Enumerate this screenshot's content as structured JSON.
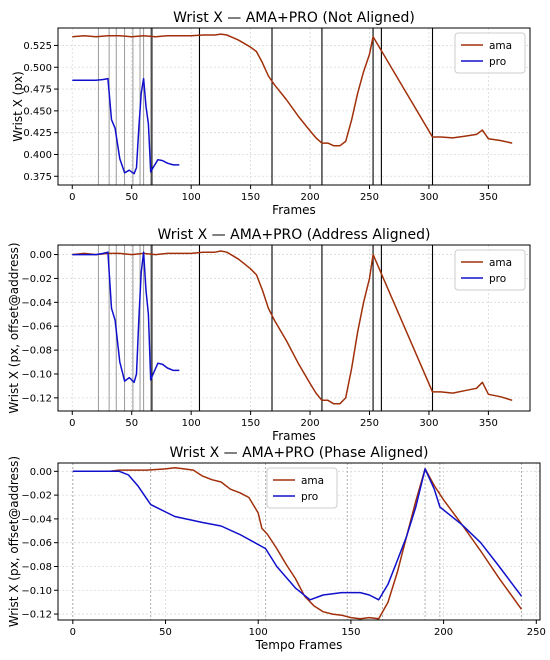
{
  "chart_data": [
    {
      "type": "line",
      "title": "Wrist X — AMA+PRO (Not Aligned)",
      "xlabel": "Frames",
      "ylabel": "Wrist X (px)",
      "xlim": [
        -12,
        385
      ],
      "ylim": [
        0.365,
        0.545
      ],
      "xticks": [
        0,
        50,
        100,
        150,
        200,
        250,
        300,
        350
      ],
      "yticks": [
        0.375,
        0.4,
        0.425,
        0.45,
        0.475,
        0.5,
        0.525
      ],
      "ytick_labels": [
        "0.375",
        "0.400",
        "0.425",
        "0.450",
        "0.475",
        "0.500",
        "0.525"
      ],
      "grid": true,
      "legend": "top-right",
      "pro_phase_lines": [
        22,
        31,
        37,
        44,
        51,
        57,
        60,
        66
      ],
      "ama_phase_lines": [
        67,
        107,
        168,
        210,
        253,
        260,
        303
      ],
      "series": [
        {
          "name": "ama",
          "color": "#a0300a",
          "x": [
            0,
            10,
            20,
            30,
            40,
            50,
            60,
            70,
            80,
            90,
            100,
            110,
            115,
            120,
            125,
            130,
            135,
            140,
            145,
            150,
            155,
            160,
            165,
            170,
            180,
            190,
            200,
            205,
            210,
            215,
            220,
            225,
            230,
            235,
            240,
            245,
            250,
            253,
            303,
            310,
            320,
            330,
            340,
            345,
            350,
            360,
            370
          ],
          "y": [
            0.535,
            0.536,
            0.535,
            0.536,
            0.536,
            0.535,
            0.536,
            0.535,
            0.536,
            0.536,
            0.536,
            0.537,
            0.537,
            0.537,
            0.538,
            0.537,
            0.534,
            0.531,
            0.527,
            0.523,
            0.518,
            0.505,
            0.49,
            0.48,
            0.463,
            0.444,
            0.427,
            0.419,
            0.413,
            0.413,
            0.41,
            0.41,
            0.415,
            0.44,
            0.47,
            0.495,
            0.515,
            0.535,
            0.42,
            0.42,
            0.419,
            0.421,
            0.423,
            0.428,
            0.418,
            0.416,
            0.413
          ]
        },
        {
          "name": "pro",
          "color": "#1010cc",
          "x": [
            0,
            10,
            20,
            26,
            30,
            33,
            36,
            40,
            44,
            48,
            52,
            54,
            56,
            58,
            60,
            62,
            64,
            66,
            68,
            72,
            76,
            80,
            85,
            88,
            90
          ],
          "y": [
            0.485,
            0.485,
            0.485,
            0.486,
            0.487,
            0.44,
            0.43,
            0.395,
            0.379,
            0.382,
            0.378,
            0.385,
            0.43,
            0.47,
            0.487,
            0.455,
            0.435,
            0.38,
            0.385,
            0.394,
            0.393,
            0.39,
            0.388,
            0.388,
            0.388
          ]
        }
      ]
    },
    {
      "type": "line",
      "title": "Wrist X — AMA+PRO (Address Aligned)",
      "xlabel": "Frames",
      "ylabel": "Wrist X (px, offset@address)",
      "xlim": [
        -12,
        385
      ],
      "ylim": [
        -0.131,
        0.008
      ],
      "xticks": [
        0,
        50,
        100,
        150,
        200,
        250,
        300,
        350
      ],
      "yticks": [
        -0.12,
        -0.1,
        -0.08,
        -0.06,
        -0.04,
        -0.02,
        0.0
      ],
      "ytick_labels": [
        "−0.12",
        "−0.10",
        "−0.08",
        "−0.06",
        "−0.04",
        "−0.02",
        "0.00"
      ],
      "grid": true,
      "legend": "top-right",
      "pro_phase_lines": [
        22,
        31,
        37,
        44,
        51,
        57,
        60,
        66
      ],
      "ama_phase_lines": [
        67,
        107,
        168,
        210,
        253,
        260,
        303
      ],
      "series": [
        {
          "name": "ama",
          "color": "#a0300a",
          "x": [
            0,
            10,
            20,
            30,
            40,
            50,
            60,
            70,
            80,
            90,
            100,
            110,
            115,
            120,
            125,
            130,
            135,
            140,
            145,
            150,
            155,
            160,
            165,
            170,
            180,
            190,
            200,
            205,
            210,
            215,
            220,
            225,
            230,
            235,
            240,
            245,
            250,
            253,
            303,
            310,
            320,
            330,
            340,
            345,
            350,
            360,
            370
          ],
          "y": [
            0.0,
            0.001,
            0.0,
            0.001,
            0.001,
            0.0,
            0.001,
            0.0,
            0.001,
            0.001,
            0.001,
            0.002,
            0.002,
            0.002,
            0.003,
            0.002,
            -0.001,
            -0.004,
            -0.008,
            -0.012,
            -0.017,
            -0.03,
            -0.045,
            -0.055,
            -0.072,
            -0.091,
            -0.108,
            -0.116,
            -0.122,
            -0.122,
            -0.125,
            -0.125,
            -0.12,
            -0.095,
            -0.065,
            -0.04,
            -0.02,
            0.0,
            -0.115,
            -0.115,
            -0.116,
            -0.114,
            -0.112,
            -0.107,
            -0.117,
            -0.119,
            -0.122
          ]
        },
        {
          "name": "pro",
          "color": "#1010cc",
          "x": [
            0,
            10,
            20,
            26,
            30,
            33,
            36,
            40,
            44,
            48,
            52,
            54,
            56,
            58,
            60,
            62,
            64,
            66,
            68,
            72,
            76,
            80,
            85,
            88,
            90
          ],
          "y": [
            0.0,
            0.0,
            0.0,
            0.001,
            0.002,
            -0.045,
            -0.055,
            -0.09,
            -0.106,
            -0.103,
            -0.107,
            -0.1,
            -0.055,
            -0.015,
            0.002,
            -0.03,
            -0.05,
            -0.105,
            -0.1,
            -0.091,
            -0.092,
            -0.095,
            -0.097,
            -0.097,
            -0.097
          ]
        }
      ]
    },
    {
      "type": "line",
      "title": "Wrist X — AMA+PRO (Phase Aligned)",
      "xlabel": "Tempo Frames",
      "ylabel": "Wrist X (px, offset@address)",
      "xlim": [
        -8,
        252
      ],
      "ylim": [
        -0.125,
        0.007
      ],
      "xticks": [
        0,
        50,
        100,
        150,
        200,
        250
      ],
      "yticks": [
        -0.12,
        -0.1,
        -0.08,
        -0.06,
        -0.04,
        -0.02,
        0.0
      ],
      "ytick_labels": [
        "−0.12",
        "−0.10",
        "−0.08",
        "−0.06",
        "−0.04",
        "−0.02",
        "0.00"
      ],
      "grid": true,
      "legend": "top-center",
      "phase_lines": [
        0,
        42,
        104,
        148,
        167,
        190,
        198,
        242
      ],
      "series": [
        {
          "name": "ama",
          "color": "#a0300a",
          "x": [
            0,
            10,
            20,
            25,
            30,
            40,
            50,
            55,
            60,
            65,
            70,
            75,
            80,
            85,
            90,
            95,
            100,
            102,
            105,
            110,
            115,
            120,
            125,
            130,
            135,
            140,
            145,
            150,
            155,
            160,
            165,
            170,
            175,
            180,
            185,
            190,
            195,
            200,
            210,
            220,
            230,
            242
          ],
          "y": [
            0.0,
            0.0,
            0.0,
            0.001,
            0.001,
            0.001,
            0.002,
            0.003,
            0.002,
            0.001,
            -0.004,
            -0.007,
            -0.009,
            -0.015,
            -0.018,
            -0.022,
            -0.035,
            -0.048,
            -0.053,
            -0.065,
            -0.078,
            -0.09,
            -0.105,
            -0.113,
            -0.118,
            -0.12,
            -0.121,
            -0.123,
            -0.124,
            -0.123,
            -0.124,
            -0.11,
            -0.085,
            -0.055,
            -0.025,
            0.002,
            -0.012,
            -0.024,
            -0.045,
            -0.067,
            -0.09,
            -0.116
          ]
        },
        {
          "name": "pro",
          "color": "#1010cc",
          "x": [
            0,
            10,
            20,
            25,
            30,
            35,
            42,
            55,
            70,
            80,
            90,
            104,
            110,
            120,
            128,
            135,
            145,
            155,
            160,
            165,
            170,
            175,
            180,
            185,
            190,
            195,
            198,
            210,
            220,
            230,
            242
          ],
          "y": [
            0.0,
            0.0,
            0.0,
            0.0,
            -0.003,
            -0.012,
            -0.028,
            -0.038,
            -0.043,
            -0.046,
            -0.053,
            -0.065,
            -0.08,
            -0.098,
            -0.108,
            -0.104,
            -0.102,
            -0.102,
            -0.104,
            -0.108,
            -0.095,
            -0.075,
            -0.055,
            -0.03,
            0.002,
            -0.015,
            -0.03,
            -0.045,
            -0.06,
            -0.08,
            -0.105
          ]
        }
      ]
    }
  ]
}
